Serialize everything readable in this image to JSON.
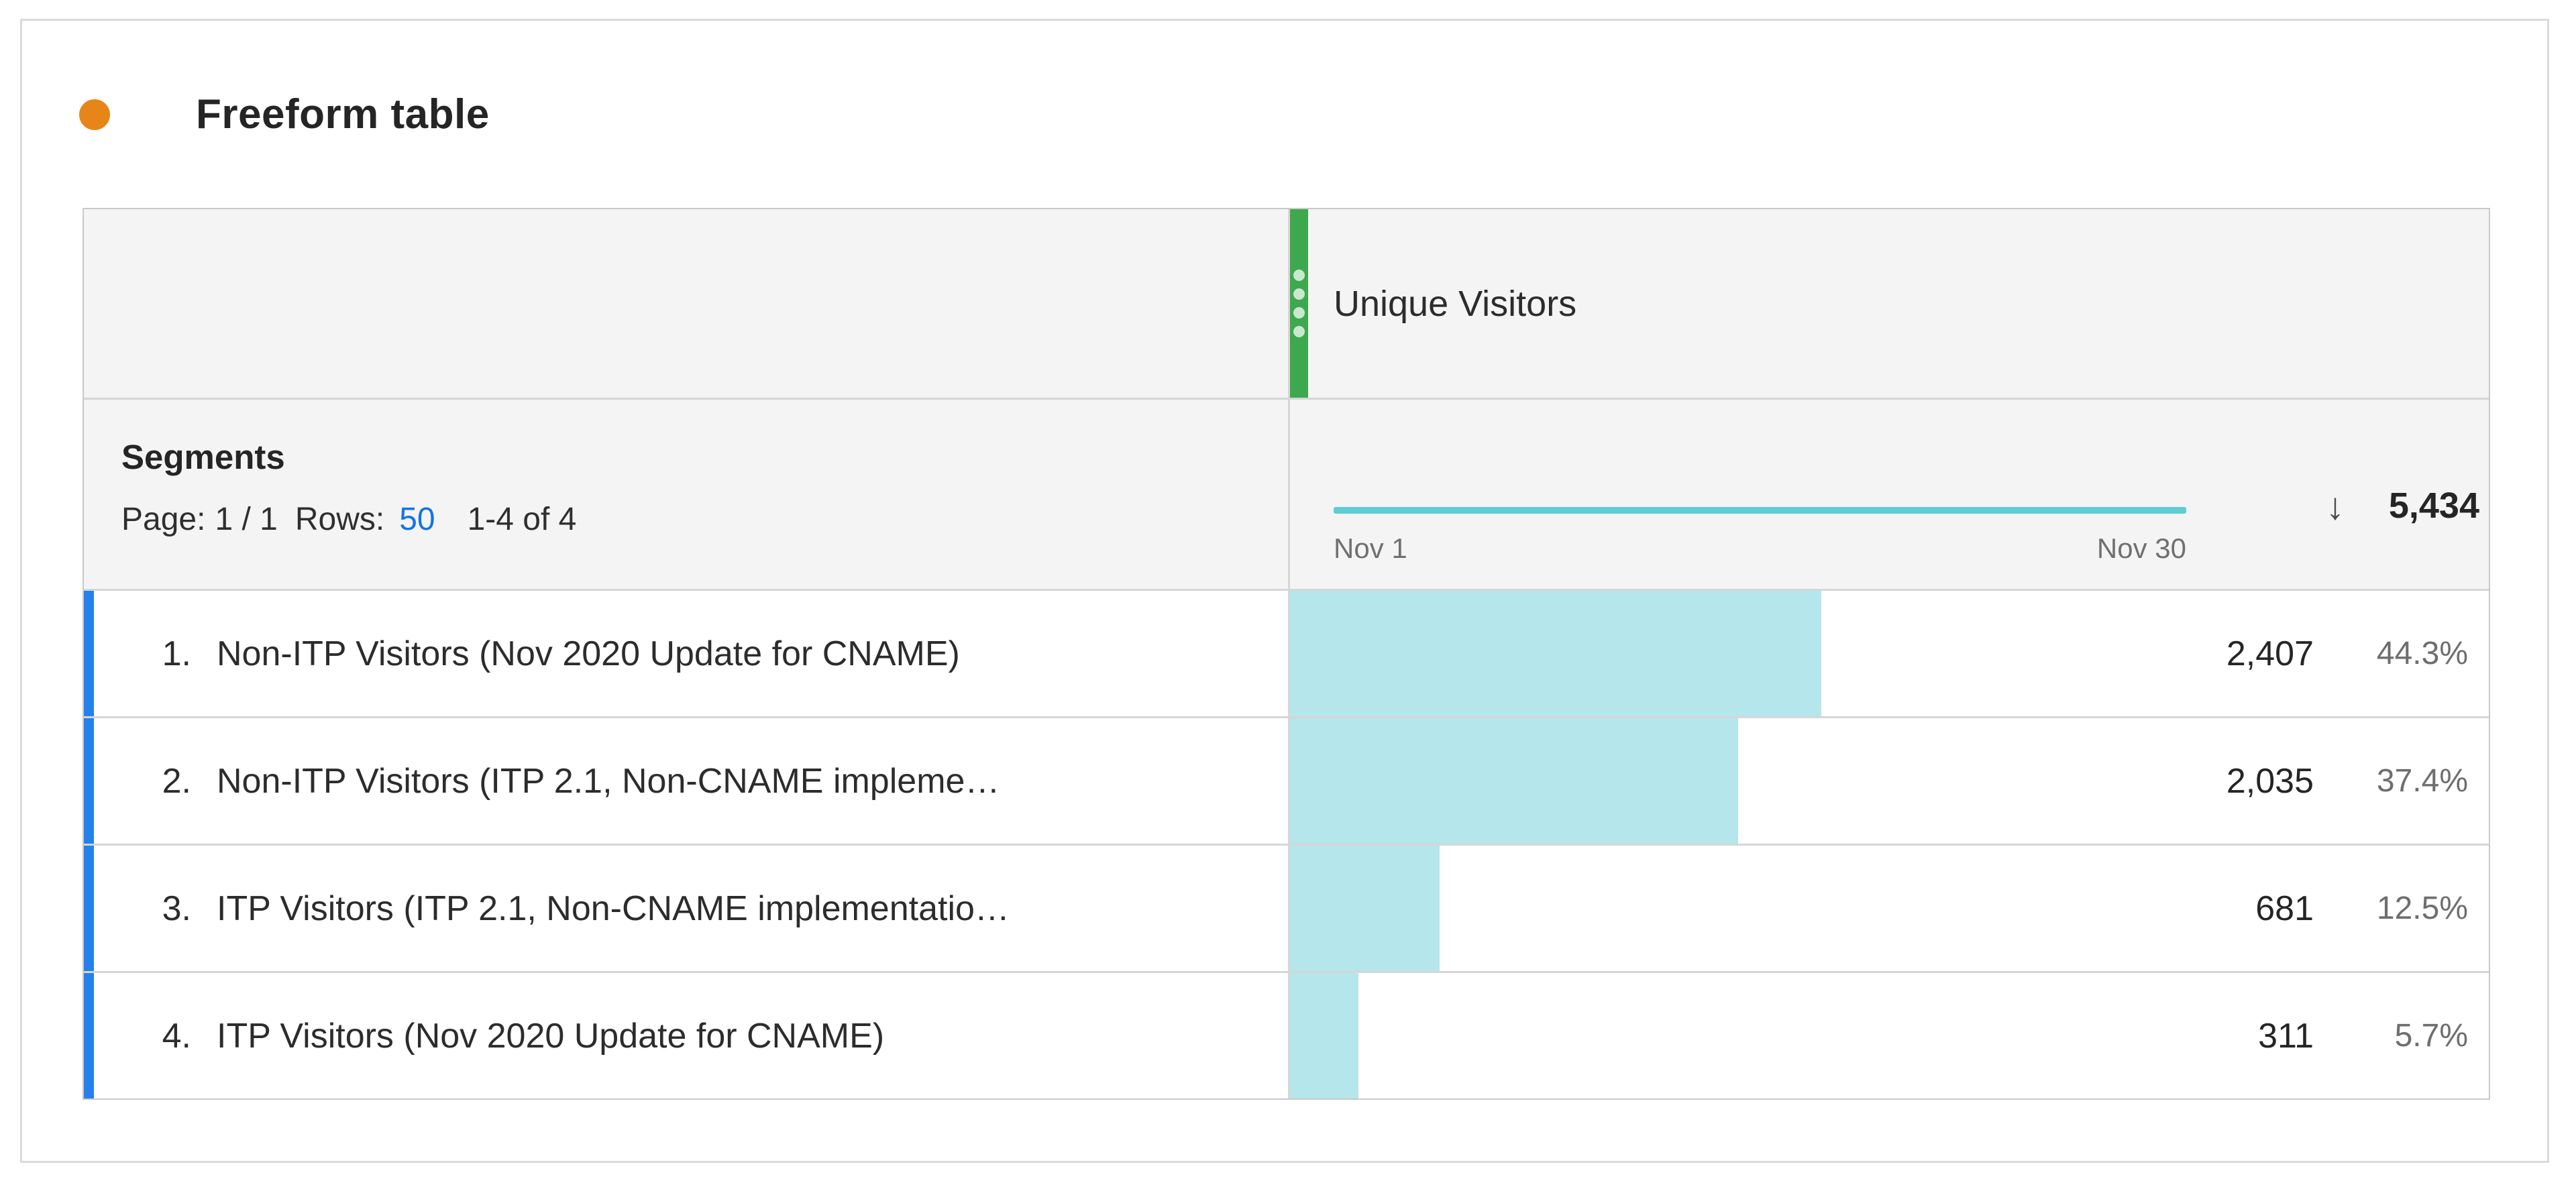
{
  "panel": {
    "title": "Freeform table"
  },
  "table": {
    "metric_header": {
      "label": "Unique Visitors"
    },
    "dimension_header": {
      "title": "Segments",
      "page_label": "Page:",
      "page_value": "1 / 1",
      "rows_label": "Rows:",
      "rows_value": "50",
      "range_text": "1-4 of 4"
    },
    "summary": {
      "spark_start_label": "Nov 1",
      "spark_end_label": "Nov 30",
      "sort_icon": "↓",
      "total": "5,434"
    },
    "rows": [
      {
        "index": "1.",
        "label": "Non-ITP Visitors (Nov 2020 Update for CNAME)",
        "value": "2,407",
        "pct": "44.3%",
        "pct_num": 44.3
      },
      {
        "index": "2.",
        "label": "Non-ITP Visitors (ITP 2.1, Non-CNAME impleme…",
        "value": "2,035",
        "pct": "37.4%",
        "pct_num": 37.4
      },
      {
        "index": "3.",
        "label": "ITP Visitors (ITP 2.1, Non-CNAME implementatio…",
        "value": "681",
        "pct": "12.5%",
        "pct_num": 12.5
      },
      {
        "index": "4.",
        "label": "ITP Visitors (Nov 2020 Update for CNAME)",
        "value": "311",
        "pct": "5.7%",
        "pct_num": 5.7
      }
    ]
  },
  "colors": {
    "accent_orange": "#E68619",
    "handle_green": "#3EA84E",
    "row_indicator_blue": "#2680EB",
    "link_blue": "#1473E6",
    "bar_fill": "#B4E6EC",
    "spark_teal": "#5FCCD6",
    "header_bg": "#F4F4F4"
  },
  "chart_data": [
    {
      "type": "line",
      "title": "Unique Visitors sparkline",
      "x": [
        "Nov 1",
        "Nov 30"
      ],
      "trend": "flat",
      "total": 5434,
      "legend_position": "none",
      "grid": false
    },
    {
      "type": "bar",
      "title": "Unique Visitors by segment (row background bars)",
      "categories": [
        "Non-ITP Visitors (Nov 2020 Update for CNAME)",
        "Non-ITP Visitors (ITP 2.1, Non-CNAME impleme…",
        "ITP Visitors (ITP 2.1, Non-CNAME implementatio…",
        "ITP Visitors (Nov 2020 Update for CNAME)"
      ],
      "values": [
        2407,
        2035,
        681,
        311
      ],
      "percents": [
        44.3,
        37.4,
        12.5,
        5.7
      ],
      "xlabel": "",
      "ylabel": "Unique Visitors",
      "ylim": [
        0,
        5434
      ]
    }
  ]
}
